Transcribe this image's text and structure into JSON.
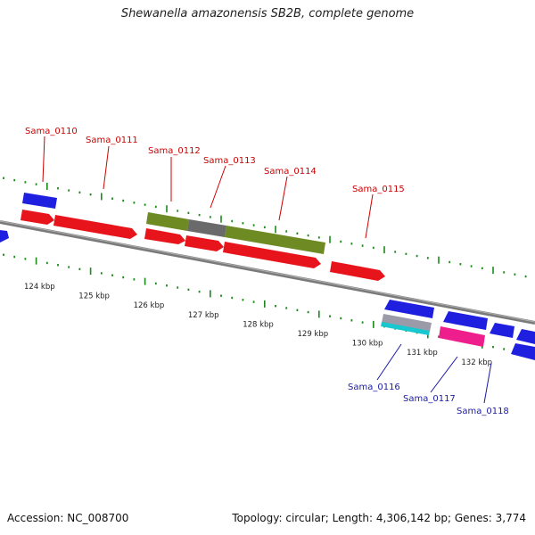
{
  "title": "Shewanella amazonensis SB2B, complete genome",
  "footer": {
    "accession": "Accession: NC_008700",
    "summary": "Topology: circular; Length: 4,306,142 bp; Genes: 3,774"
  },
  "ruler": [
    {
      "label": "124 kbp",
      "kbp": 124
    },
    {
      "label": "125 kbp",
      "kbp": 125
    },
    {
      "label": "126 kbp",
      "kbp": 126
    },
    {
      "label": "127 kbp",
      "kbp": 127
    },
    {
      "label": "128 kbp",
      "kbp": 128
    },
    {
      "label": "129 kbp",
      "kbp": 129
    },
    {
      "label": "130 kbp",
      "kbp": 130
    },
    {
      "label": "131 kbp",
      "kbp": 131
    },
    {
      "label": "132 kbp",
      "kbp": 132
    }
  ],
  "gene_labels": [
    {
      "id": "Sama_0110",
      "text": "Sama_0110",
      "strand": "forward"
    },
    {
      "id": "Sama_0111",
      "text": "Sama_0111",
      "strand": "forward"
    },
    {
      "id": "Sama_0112",
      "text": "Sama_0112",
      "strand": "forward"
    },
    {
      "id": "Sama_0113",
      "text": "Sama_0113",
      "strand": "forward"
    },
    {
      "id": "Sama_0114",
      "text": "Sama_0114",
      "strand": "forward"
    },
    {
      "id": "Sama_0115",
      "text": "Sama_0115",
      "strand": "forward"
    },
    {
      "id": "Sama_0116",
      "text": "Sama_0116",
      "strand": "reverse"
    },
    {
      "id": "Sama_0117",
      "text": "Sama_0117",
      "strand": "reverse"
    },
    {
      "id": "Sama_0118",
      "text": "Sama_0118",
      "strand": "reverse"
    }
  ],
  "colors": {
    "forward_cds": "#e8141c",
    "reverse_cds": "#1f1fe0",
    "feature_blue": "#1f1fe0",
    "feature_olive": "#6e8a22",
    "feature_grey": "#6a6a6a",
    "feature_cyan": "#18c8d0",
    "feature_pink": "#ee1e8c",
    "ruler_ticks": "#1a8a1a",
    "backbone": "#7a7a7a",
    "forward_label": "#cc0000",
    "reverse_label": "#1a1aa6"
  }
}
